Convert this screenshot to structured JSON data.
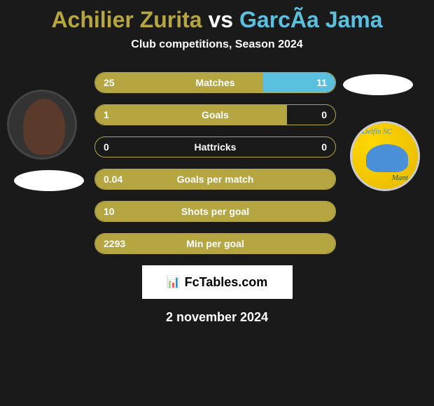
{
  "title": {
    "player1": "Achilier Zurita",
    "vs": "vs",
    "player2": "GarcÃ­a Jama"
  },
  "subtitle": "Club competitions, Season 2024",
  "stats": [
    {
      "label": "Matches",
      "left_val": "25",
      "right_val": "11",
      "left_pct": 70,
      "right_pct": 30
    },
    {
      "label": "Goals",
      "left_val": "1",
      "right_val": "0",
      "left_pct": 80,
      "right_pct": 0
    },
    {
      "label": "Hattricks",
      "left_val": "0",
      "right_val": "0",
      "left_pct": 0,
      "right_pct": 0
    },
    {
      "label": "Goals per match",
      "left_val": "0.04",
      "right_val": "",
      "left_pct": 100,
      "right_pct": 0
    },
    {
      "label": "Shots per goal",
      "left_val": "10",
      "right_val": "",
      "left_pct": 100,
      "right_pct": 0
    },
    {
      "label": "Min per goal",
      "left_val": "2293",
      "right_val": "",
      "left_pct": 100,
      "right_pct": 0
    }
  ],
  "logo_text": "FcTables.com",
  "date": "2 november 2024",
  "badge": {
    "top": "Delfín SC",
    "bottom": "Mant"
  },
  "colors": {
    "player1": "#b5a642",
    "player2": "#5bc0de",
    "bg": "#1a1a1a",
    "bar_border": "#b5a642"
  }
}
